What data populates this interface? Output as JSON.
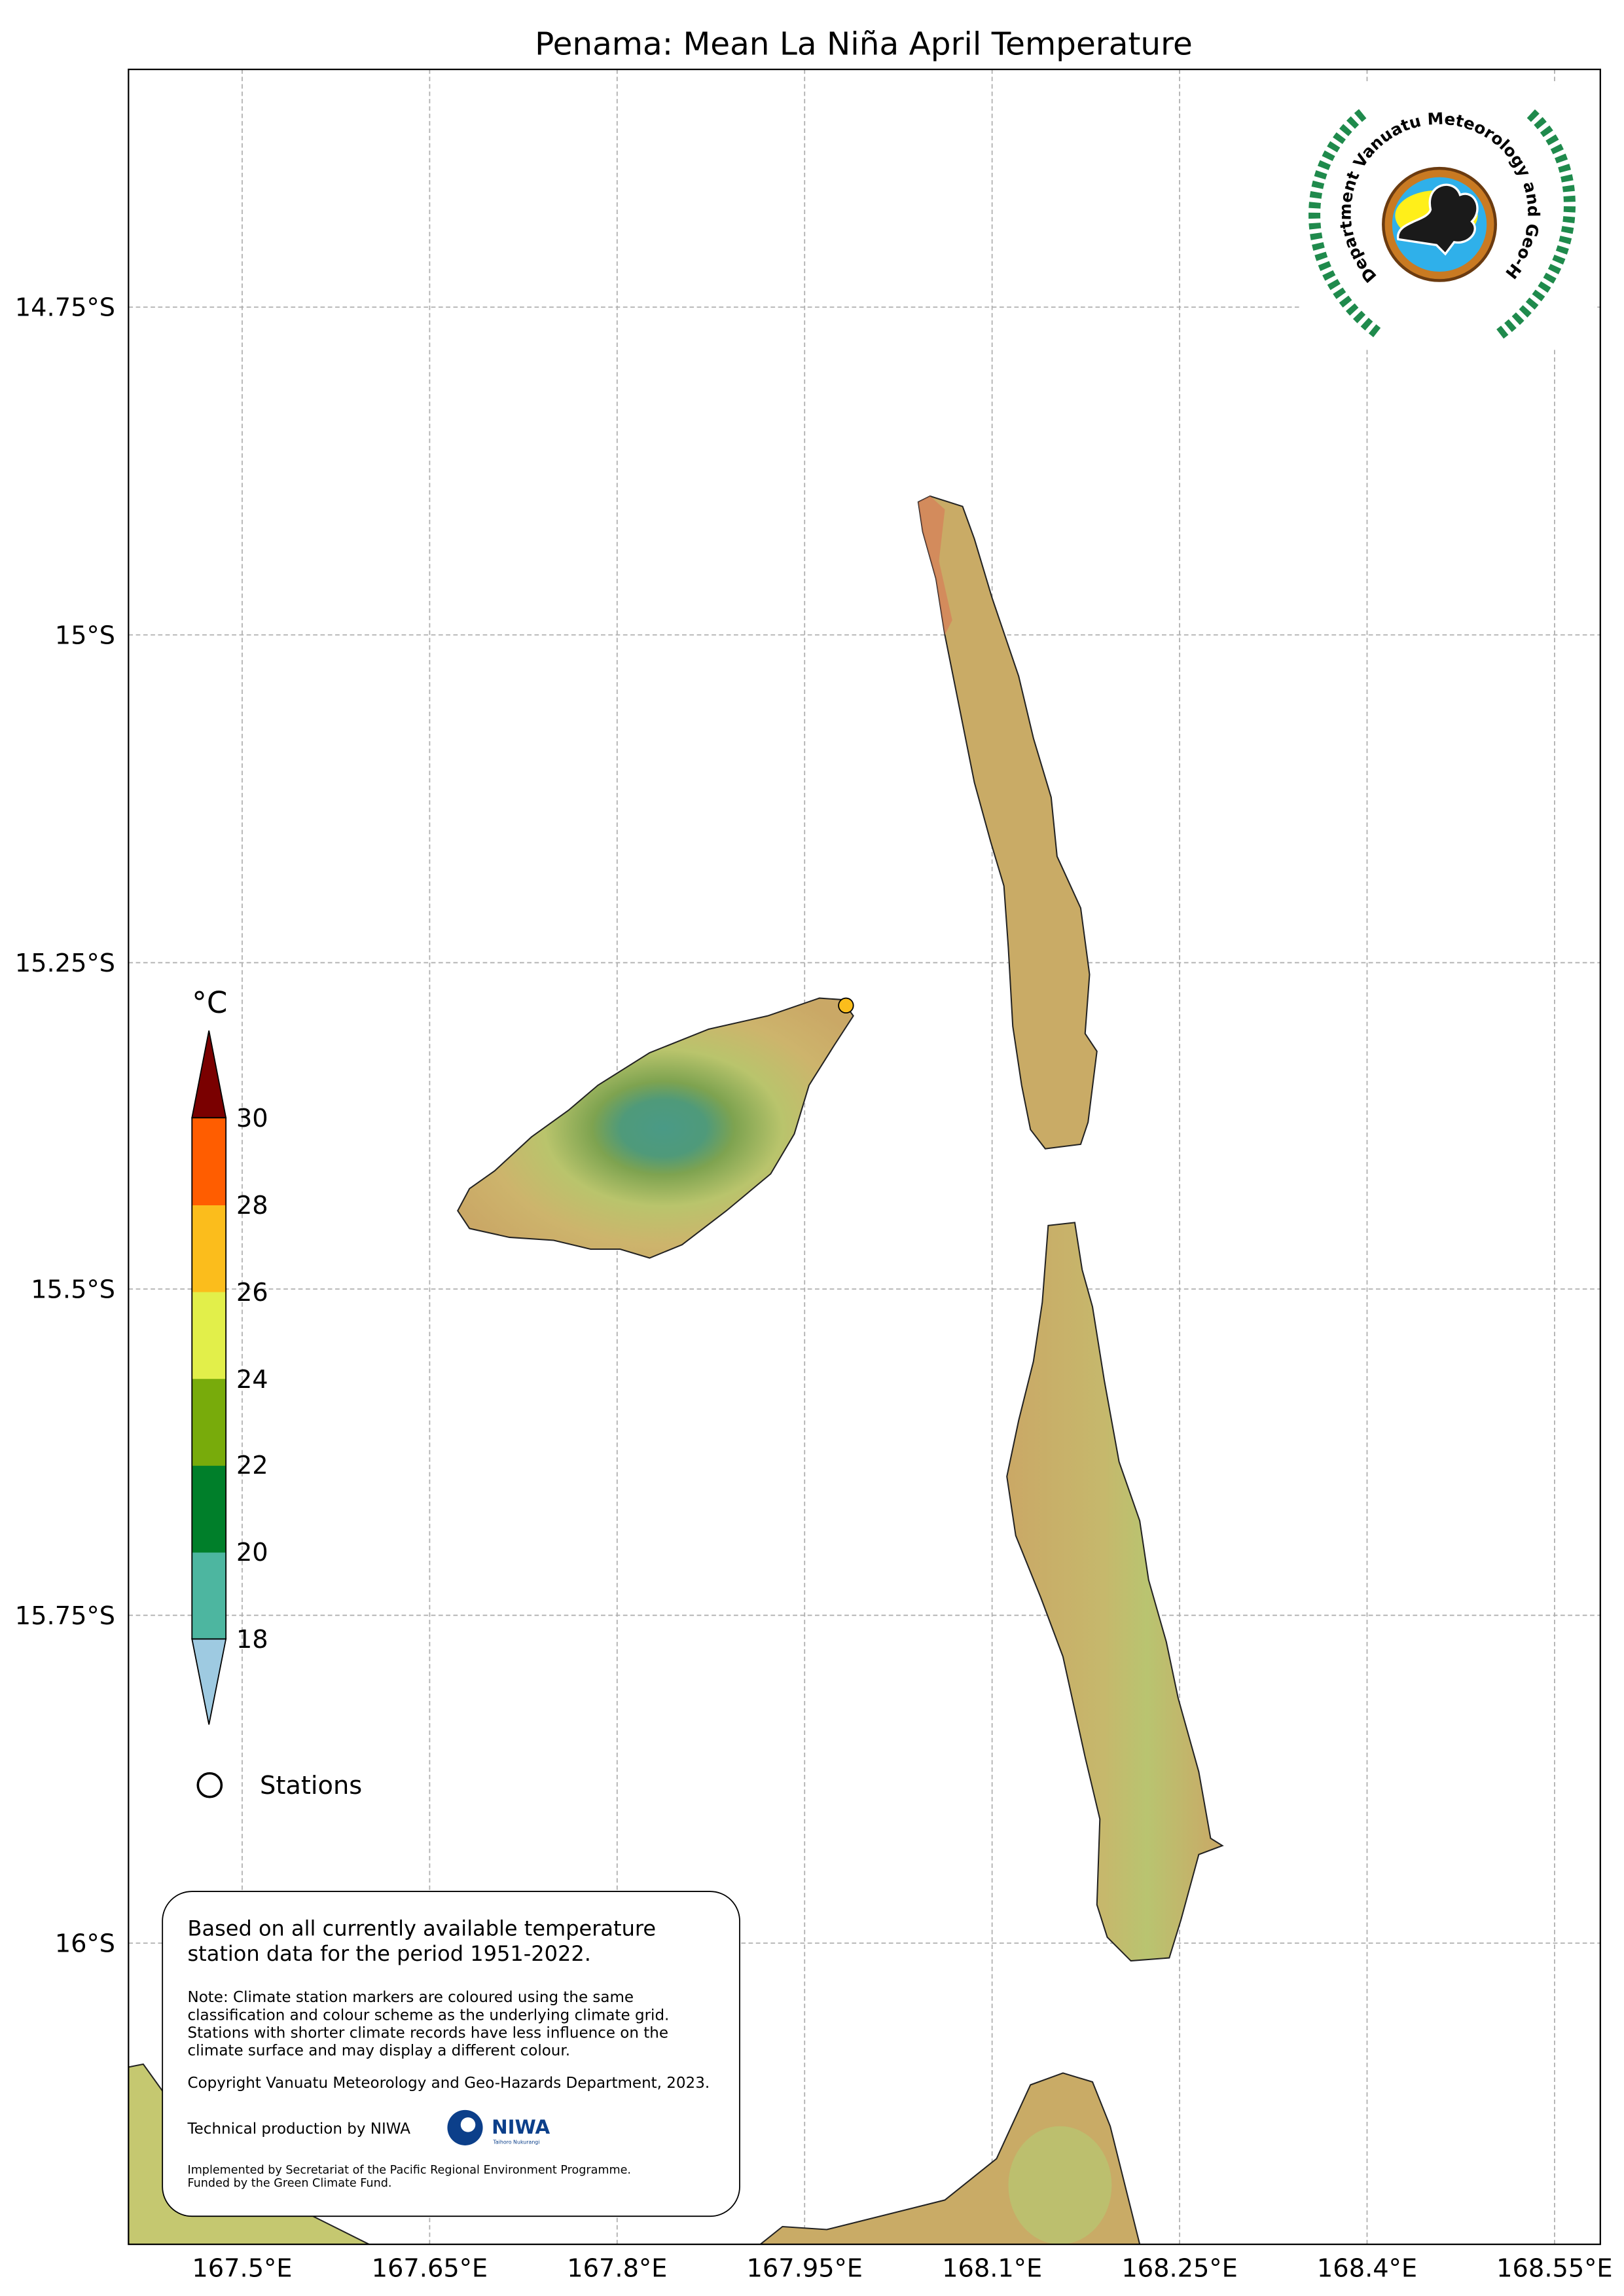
{
  "title": "Penama: Mean La Niña April Temperature",
  "chart_data": {
    "type": "map",
    "title": "Penama: Mean La Niña April Temperature",
    "y_ticks": [
      "14.75°S",
      "15°S",
      "15.25°S",
      "15.5°S",
      "15.75°S",
      "16°S"
    ],
    "x_ticks": [
      "167.5°E",
      "167.65°E",
      "167.8°E",
      "167.95°E",
      "168.1°E",
      "168.25°E",
      "168.4°E",
      "168.55°E"
    ],
    "grid": true,
    "colorbar": {
      "unit": "°C",
      "levels": [
        "18",
        "20",
        "22",
        "24",
        "26",
        "28",
        "30"
      ],
      "colors": [
        "#9ecae1",
        "#4db6a0",
        "#007f2a",
        "#78ab0b",
        "#e2ef4a",
        "#fbbd1c",
        "#ff5d00",
        "#7a0000"
      ],
      "extend": "both"
    },
    "stations": [
      {
        "lon": 167.96,
        "lat": -15.28,
        "color": "#fbbd1c"
      }
    ]
  },
  "legend": {
    "stations_label": "Stations"
  },
  "info_box": {
    "main": [
      "Based on all currently available temperature",
      "station data for the period 1951-2022."
    ],
    "note": [
      "Note: Climate station markers are coloured using the same",
      "classification and colour scheme as the underlying climate grid.",
      "Stations with shorter climate records have less influence on the",
      "climate surface and may display a different colour."
    ],
    "copyright": "Copyright Vanuatu Meteorology and Geo-Hazards Department, 2023.",
    "technical": "Technical production by NIWA",
    "niwa_logo": "NIWA",
    "niwa_sub": "Taihoro Nukurangi",
    "implemented": [
      "Implemented by Secretariat of the Pacific Regional Environment Programme.",
      "Funded by the Green Climate Fund."
    ]
  },
  "logo": {
    "text": "Department Vanuatu Meteorology and Geo-Hazards"
  }
}
